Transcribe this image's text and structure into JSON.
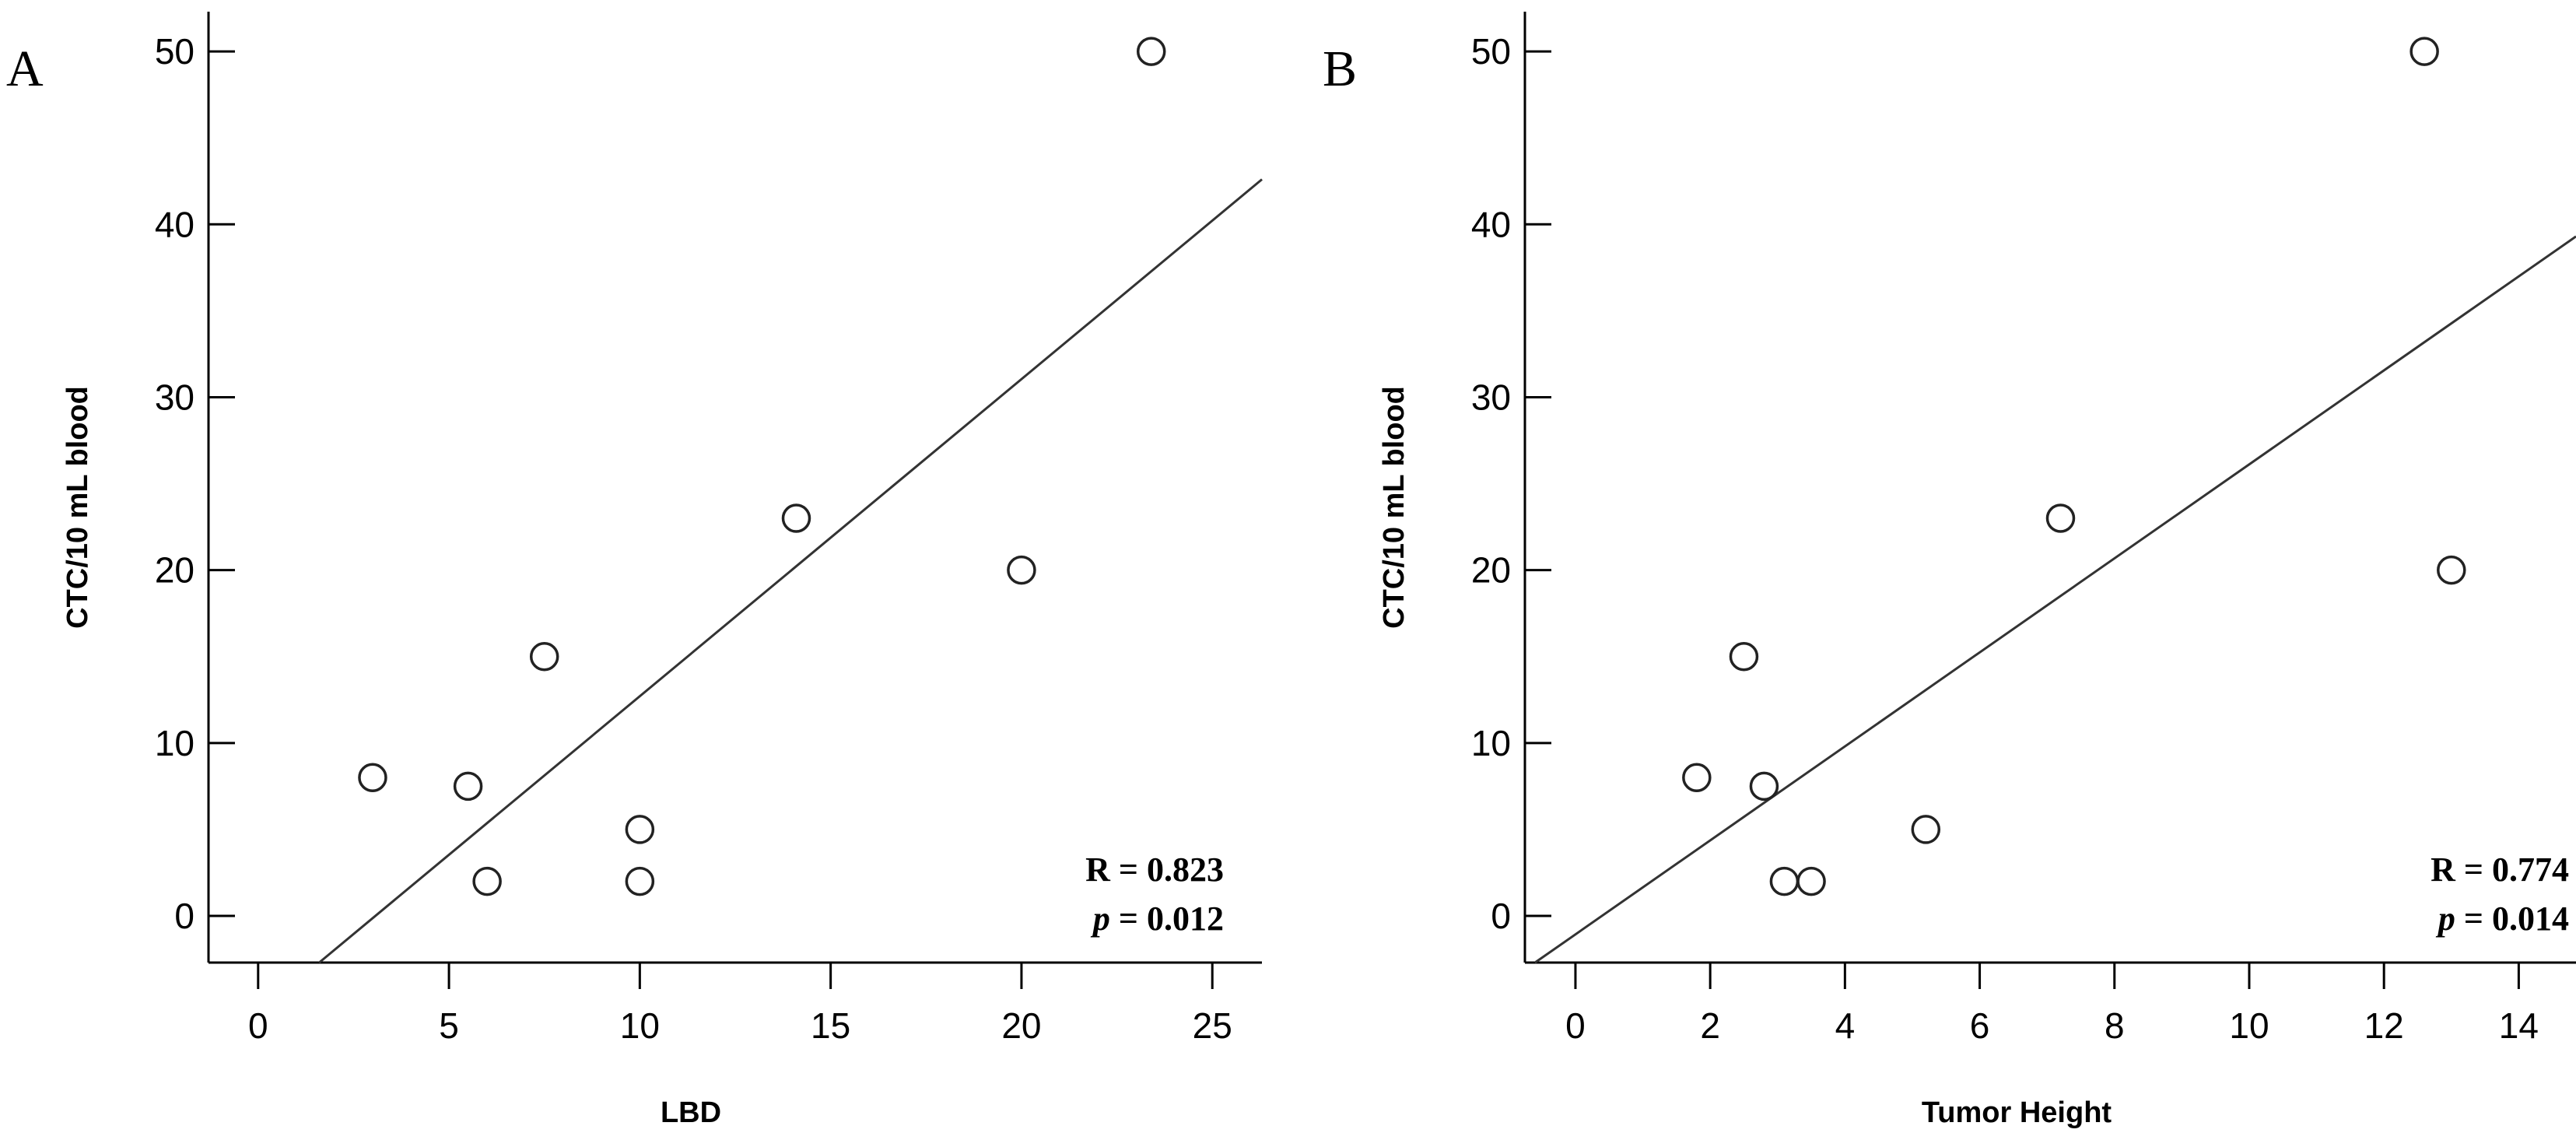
{
  "chart_data": [
    {
      "panel": "A",
      "type": "scatter",
      "xlabel": "LBD",
      "ylabel": "CTC/10 mL blood",
      "xlim": [
        -1.3,
        26.3
      ],
      "ylim": [
        -2.7,
        52.3
      ],
      "xticks": [
        0,
        5,
        10,
        15,
        20,
        25
      ],
      "yticks": [
        0,
        10,
        20,
        30,
        40,
        50
      ],
      "points": [
        {
          "x": 3,
          "y": 8
        },
        {
          "x": 5.5,
          "y": 7.5
        },
        {
          "x": 6,
          "y": 2
        },
        {
          "x": 7.5,
          "y": 15
        },
        {
          "x": 10,
          "y": 5
        },
        {
          "x": 10,
          "y": 2
        },
        {
          "x": 14.1,
          "y": 23
        },
        {
          "x": 20,
          "y": 20
        },
        {
          "x": 23.4,
          "y": 50
        }
      ],
      "fit_line": {
        "x1": 1.6,
        "y1": -2.7,
        "x2": 26.3,
        "y2": 42.6
      },
      "r_label": "R = 0.823",
      "p_symbol": "p",
      "p_rest": " = 0.012",
      "grid": false
    },
    {
      "panel": "B",
      "type": "scatter",
      "xlabel": "Tumor Height",
      "ylabel": "CTC/10 mL blood",
      "xlim": [
        -0.75,
        14.85
      ],
      "ylim": [
        -2.7,
        52.3
      ],
      "xticks": [
        0,
        2,
        4,
        6,
        8,
        10,
        12,
        14
      ],
      "yticks": [
        0,
        10,
        20,
        30,
        40,
        50
      ],
      "points": [
        {
          "x": 1.8,
          "y": 8
        },
        {
          "x": 2.5,
          "y": 15
        },
        {
          "x": 2.8,
          "y": 7.5
        },
        {
          "x": 3.1,
          "y": 2
        },
        {
          "x": 3.5,
          "y": 2
        },
        {
          "x": 5.2,
          "y": 5
        },
        {
          "x": 7.2,
          "y": 23
        },
        {
          "x": 12.6,
          "y": 50
        },
        {
          "x": 13,
          "y": 20
        }
      ],
      "fit_line": {
        "x1": -0.6,
        "y1": -2.7,
        "x2": 14.85,
        "y2": 39.3
      },
      "r_label": "R = 0.774",
      "p_symbol": "p",
      "p_rest": " = 0.014",
      "grid": false
    }
  ]
}
